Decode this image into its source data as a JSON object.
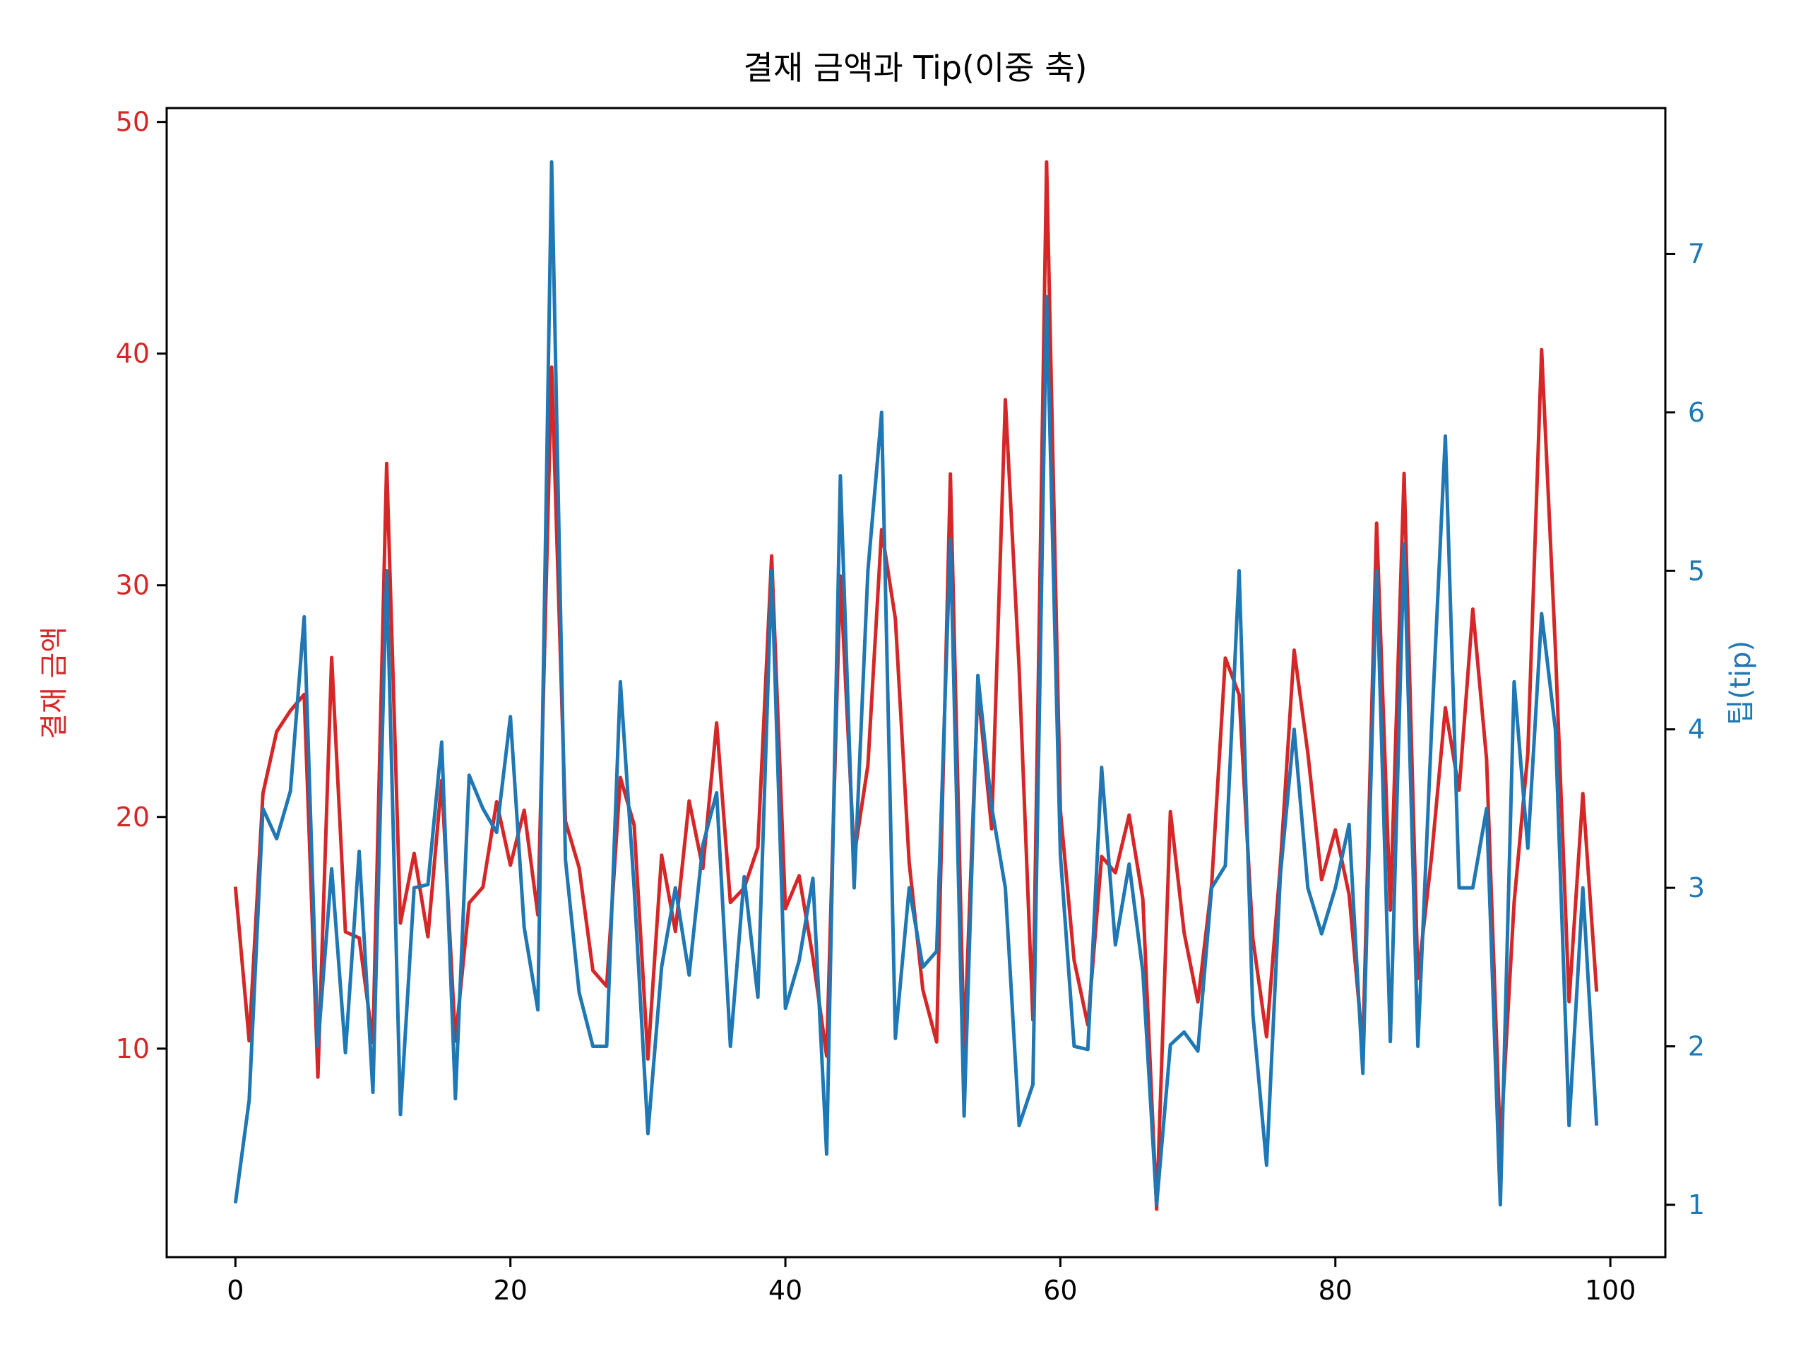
{
  "chart_data": {
    "type": "line",
    "title": "결재 금액과 Tip(이중 축)",
    "xlabel": "",
    "xlim": [
      -5,
      104
    ],
    "x_ticks": [
      0,
      20,
      40,
      60,
      80,
      100
    ],
    "x_tick_labels": [
      "0",
      "20",
      "40",
      "60",
      "80",
      "100"
    ],
    "y_left": {
      "label": "결재 금액",
      "color": "#d62728",
      "lim": [
        1,
        50.6
      ],
      "ticks": [
        10,
        20,
        30,
        40,
        50
      ],
      "tick_labels": [
        "10",
        "20",
        "30",
        "40",
        "50"
      ]
    },
    "y_right": {
      "label": "팁(tip)",
      "color": "#1f77b4",
      "lim": [
        0.67,
        7.92
      ],
      "ticks": [
        1,
        2,
        3,
        4,
        5,
        6,
        7
      ],
      "tick_labels": [
        "1",
        "2",
        "3",
        "4",
        "5",
        "6",
        "7"
      ]
    },
    "x": [
      0,
      1,
      2,
      3,
      4,
      5,
      6,
      7,
      8,
      9,
      10,
      11,
      12,
      13,
      14,
      15,
      16,
      17,
      18,
      19,
      20,
      21,
      22,
      23,
      24,
      25,
      26,
      27,
      28,
      29,
      30,
      31,
      32,
      33,
      34,
      35,
      36,
      37,
      38,
      39,
      40,
      41,
      42,
      43,
      44,
      45,
      46,
      47,
      48,
      49,
      50,
      51,
      52,
      53,
      54,
      55,
      56,
      57,
      58,
      59,
      60,
      61,
      62,
      63,
      64,
      65,
      66,
      67,
      68,
      69,
      70,
      71,
      72,
      73,
      74,
      75,
      76,
      77,
      78,
      79,
      80,
      81,
      82,
      83,
      84,
      85,
      86,
      87,
      88,
      89,
      90,
      91,
      92,
      93,
      94,
      95,
      96,
      97,
      98,
      99
    ],
    "series": [
      {
        "axis": "left",
        "color": "#d62728",
        "values": [
          16.99,
          10.34,
          21.01,
          23.68,
          24.59,
          25.29,
          8.77,
          26.88,
          15.04,
          14.78,
          10.27,
          35.26,
          15.42,
          18.43,
          14.83,
          21.58,
          10.33,
          16.29,
          16.97,
          20.65,
          17.92,
          20.29,
          15.77,
          39.42,
          19.82,
          17.81,
          13.37,
          12.69,
          21.7,
          19.65,
          9.55,
          18.35,
          15.06,
          20.69,
          17.78,
          24.06,
          16.31,
          16.93,
          18.69,
          31.27,
          16.04,
          17.46,
          13.94,
          9.68,
          30.4,
          18.29,
          22.23,
          32.4,
          28.55,
          18.04,
          12.54,
          10.29,
          34.81,
          9.94,
          25.56,
          19.49,
          38.01,
          26.41,
          11.24,
          48.27,
          20.29,
          13.81,
          11.02,
          18.29,
          17.59,
          20.08,
          16.45,
          3.07,
          20.23,
          15.01,
          12.02,
          17.07,
          26.86,
          25.28,
          14.73,
          10.51,
          17.92,
          27.2,
          22.76,
          17.29,
          19.44,
          16.66,
          10.07,
          32.68,
          15.98,
          34.83,
          13.03,
          18.28,
          24.71,
          21.16,
          28.97,
          22.49,
          5.75,
          16.32,
          22.75,
          40.17,
          27.28,
          12.03,
          21.01,
          12.46
        ]
      },
      {
        "axis": "right",
        "color": "#1f77b4",
        "values": [
          1.01,
          1.66,
          3.5,
          3.31,
          3.61,
          4.71,
          2.0,
          3.12,
          1.96,
          3.23,
          1.71,
          5.0,
          1.57,
          3.0,
          3.02,
          3.92,
          1.67,
          3.71,
          3.5,
          3.35,
          4.08,
          2.75,
          2.23,
          7.58,
          3.18,
          2.34,
          2.0,
          2.0,
          4.3,
          3.0,
          1.45,
          2.5,
          3.0,
          2.45,
          3.27,
          3.6,
          2.0,
          3.07,
          2.31,
          5.0,
          2.24,
          2.54,
          3.06,
          1.32,
          5.6,
          3.0,
          5.0,
          6.0,
          2.05,
          3.0,
          2.5,
          2.6,
          5.2,
          1.56,
          4.34,
          3.51,
          3.0,
          1.5,
          1.76,
          6.73,
          3.21,
          2.0,
          1.98,
          3.76,
          2.64,
          3.15,
          2.47,
          1.0,
          2.01,
          2.09,
          1.97,
          3.0,
          3.14,
          5.0,
          2.2,
          1.25,
          3.08,
          4.0,
          3.0,
          2.71,
          3.0,
          3.4,
          1.83,
          5.0,
          2.03,
          5.17,
          2.0,
          4.0,
          5.85,
          3.0,
          3.0,
          3.5,
          1.0,
          4.3,
          3.25,
          4.73,
          4.0,
          1.5,
          3.0,
          1.5
        ]
      }
    ]
  }
}
